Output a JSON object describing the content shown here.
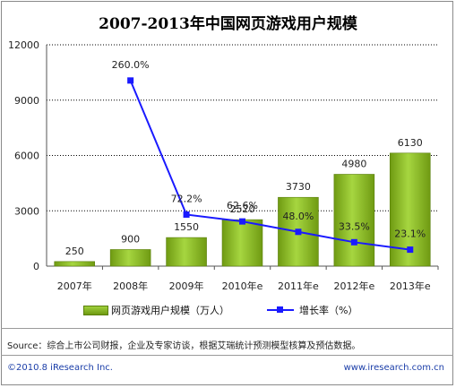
{
  "chart_data": {
    "type": "bar",
    "title": "2007-2013年中国网页游戏用户规模",
    "categories": [
      "2007年",
      "2008年",
      "2009年",
      "2010年e",
      "2011年e",
      "2012年e",
      "2013年e"
    ],
    "ylim": [
      0,
      12000
    ],
    "yticks": [
      0,
      3000,
      6000,
      9000,
      12000
    ],
    "grid": true,
    "series": [
      {
        "name": "网页游戏用户规模（万人）",
        "type": "bar",
        "color": "#8cc22a",
        "values": [
          250,
          900,
          1550,
          2520,
          3730,
          4980,
          6130
        ],
        "labels": [
          "250",
          "900",
          "1550",
          "2520",
          "3730",
          "4980",
          "6130"
        ]
      },
      {
        "name": "增长率（%）",
        "type": "line",
        "color": "#1a1aff",
        "x": [
          "2008年",
          "2009年",
          "2010年e",
          "2011年e",
          "2012年e",
          "2013年e"
        ],
        "values": [
          260.0,
          72.2,
          62.6,
          48.0,
          33.5,
          23.1
        ],
        "labels": [
          "260.0%",
          "72.2%",
          "62.6%",
          "48.0%",
          "33.5%",
          "23.1%"
        ]
      }
    ],
    "legend_position": "bottom"
  },
  "legend": {
    "bar_label": "网页游戏用户规模（万人）",
    "line_label": "增长率（%）"
  },
  "source": "Source：综合上市公司财报，企业及专家访谈，根据艾瑞统计预测模型核算及预估数据。",
  "footer": {
    "copyright": "©2010.8 iResearch Inc.",
    "website": "www.iresearch.com.cn"
  }
}
